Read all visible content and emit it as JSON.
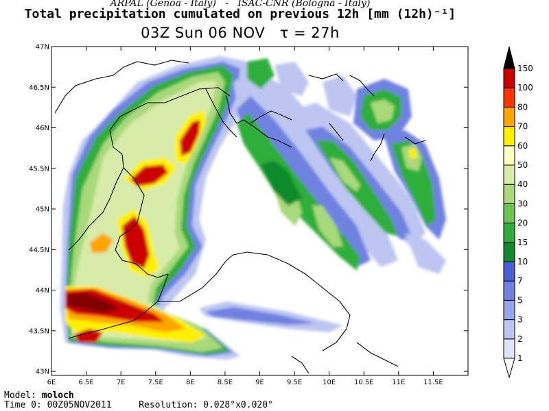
{
  "header": {
    "credit_left": "ARPAL (Genoa - Italy)",
    "credit_sep": "-",
    "credit_right": "ISAC-CNR (Bologna - Italy)",
    "title": "Total precipitation cumulated on previous 12h [mm (12h)⁻¹]",
    "subtitle_time": "03Z Sun 06 NOV",
    "subtitle_tau": "τ = 27h"
  },
  "map": {
    "lon_ticks": [
      "6E",
      "6.5E",
      "7E",
      "7.5E",
      "8E",
      "8.5E",
      "9E",
      "9.5E",
      "10E",
      "10.5E",
      "11E",
      "11.5E"
    ],
    "lat_ticks": [
      "47N",
      "46.5N",
      "46N",
      "45.5N",
      "45N",
      "44.5N",
      "44N",
      "43.5N",
      "43N"
    ],
    "lon_range": [
      6,
      12
    ],
    "lat_range": [
      42.95,
      47
    ]
  },
  "colorbar": {
    "labels": [
      "1",
      "2",
      "3",
      "5",
      "7",
      "10",
      "15",
      "20",
      "30",
      "40",
      "50",
      "60",
      "70",
      "80",
      "100",
      "150"
    ],
    "colors": [
      "#ffffff",
      "#dfe4f8",
      "#bcc6f1",
      "#96a6ea",
      "#6f82e0",
      "#4a5fd6",
      "#0f8a2a",
      "#2eae3a",
      "#6cc552",
      "#a8d97a",
      "#d6eca8",
      "#ffffc0",
      "#fff000",
      "#ffa500",
      "#ff3300",
      "#cc0000",
      "#800000",
      "#000000"
    ]
  },
  "footer": {
    "model_label": "Model:",
    "model_value": "moloch",
    "time_label": "Time 0:",
    "time_value": "00Z05NOV2011",
    "res_label": "Resolution:",
    "res_value": "0.028°x0.020°"
  }
}
